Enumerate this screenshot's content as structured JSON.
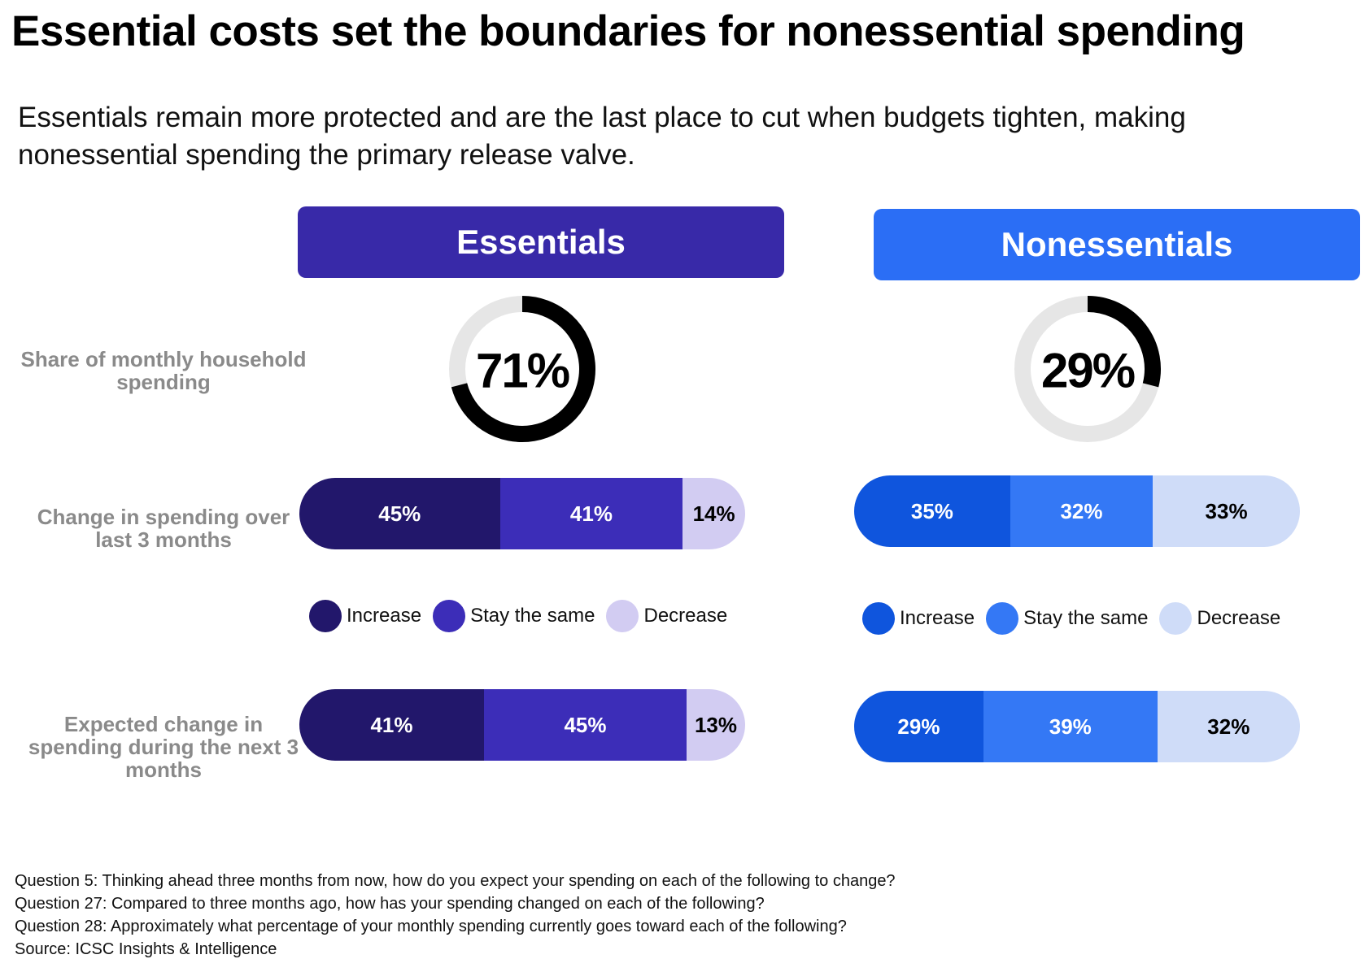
{
  "title": "Essential costs set the boundaries for nonessential spending",
  "subtitle": "Essentials remain more protected and are the last place to cut  when budgets tighten, making nonessential spending the primary release valve.",
  "row_labels": {
    "share": "Share of monthly household spending",
    "last3": "Change in spending over last 3 months",
    "next3": "Expected change in spending during the next 3 months"
  },
  "chart_data": [
    {
      "type": "pie",
      "panel": "Essentials",
      "title": "Essentials",
      "metric": "Share of monthly household spending",
      "value": 71,
      "label": "71%",
      "colors": {
        "header": "#3829a8",
        "ring_fill": "#000000",
        "ring_track": "#e6e6e6"
      }
    },
    {
      "type": "pie",
      "panel": "Nonessentials",
      "title": "Nonessentials",
      "metric": "Share of monthly household spending",
      "value": 29,
      "label": "29%",
      "colors": {
        "header": "#2b6ef5",
        "ring_fill": "#000000",
        "ring_track": "#e6e6e6"
      }
    },
    {
      "type": "bar",
      "orientation": "horizontal-stacked",
      "panel": "Essentials",
      "categories": [
        "Change in spending over last 3 months",
        "Expected change in spending during the next 3 months"
      ],
      "series": [
        {
          "name": "Increase",
          "values": [
            45,
            41
          ],
          "labels": [
            "45%",
            "41%"
          ],
          "color": "#22176b",
          "text_color": "#ffffff"
        },
        {
          "name": "Stay the same",
          "values": [
            41,
            45
          ],
          "labels": [
            "41%",
            "45%"
          ],
          "color": "#3c2db8",
          "text_color": "#ffffff"
        },
        {
          "name": "Decrease",
          "values": [
            14,
            13
          ],
          "labels": [
            "14%",
            "13%"
          ],
          "color": "#d2ccf2",
          "text_color": "#000000"
        }
      ]
    },
    {
      "type": "bar",
      "orientation": "horizontal-stacked",
      "panel": "Nonessentials",
      "categories": [
        "Change in spending over last 3 months",
        "Expected change in spending during the next 3 months"
      ],
      "series": [
        {
          "name": "Increase",
          "values": [
            35,
            29
          ],
          "labels": [
            "35%",
            "29%"
          ],
          "color": "#0f55dd",
          "text_color": "#ffffff"
        },
        {
          "name": "Stay the same",
          "values": [
            32,
            39
          ],
          "labels": [
            "32%",
            "39%"
          ],
          "color": "#3478f5",
          "text_color": "#ffffff"
        },
        {
          "name": "Decrease",
          "values": [
            33,
            32
          ],
          "labels": [
            "33%",
            "32%"
          ],
          "color": "#cfdcf8",
          "text_color": "#000000"
        }
      ]
    }
  ],
  "footnotes": [
    "Question 5: Thinking ahead three months from now, how do you expect your spending on each of the following to change?",
    "Question 27: Compared to three months ago, how has your spending changed on each of the following?",
    "Question 28: Approximately what percentage of your monthly spending currently goes toward each of the following?",
    "Source: ICSC Insights & Intelligence"
  ]
}
